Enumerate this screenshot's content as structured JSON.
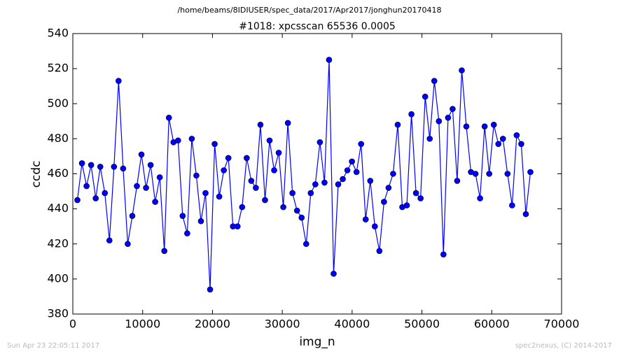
{
  "chart_data": {
    "type": "line",
    "suptitle": "/home/beams/8IDIUSER/spec_data/2017/Apr2017/jonghun20170418",
    "title": "#1018: xpcsscan 65536 0.0005",
    "xlabel": "img_n",
    "ylabel": "ccdc",
    "footer_left": "Sun Apr 23 22:05:11 2017",
    "footer_right": "spec2nexus, (C) 2014-2017",
    "xlim": [
      0,
      70000
    ],
    "xticks": [
      0,
      10000,
      20000,
      30000,
      40000,
      50000,
      60000,
      70000
    ],
    "ylim": [
      380,
      540
    ],
    "yticks": [
      380,
      400,
      420,
      440,
      460,
      480,
      500,
      520,
      540
    ],
    "color": "#0000ff",
    "x": [
      655,
      1311,
      1966,
      2621,
      3277,
      3932,
      4588,
      5243,
      5898,
      6554,
      7209,
      7864,
      8520,
      9175,
      9830,
      10486,
      11141,
      11796,
      12452,
      13107,
      13763,
      14418,
      15073,
      15729,
      16384,
      17039,
      17695,
      18350,
      19005,
      19661,
      20316,
      20972,
      21627,
      22282,
      22938,
      23593,
      24248,
      24904,
      25559,
      26214,
      26870,
      27525,
      28180,
      28836,
      29491,
      30147,
      30802,
      31457,
      32113,
      32768,
      33423,
      34079,
      34734,
      35389,
      36045,
      36700,
      37356,
      38011,
      38666,
      39322,
      39977,
      40632,
      41288,
      41943,
      42598,
      43254,
      43909,
      44564,
      45220,
      45875,
      46531,
      47186,
      47841,
      48497,
      49152,
      49807,
      50463,
      51118,
      51773,
      52429,
      53084,
      53740,
      54395,
      55050,
      55706,
      56361,
      57016,
      57672,
      58327,
      58982,
      59638,
      60293,
      60948,
      61604,
      62259,
      62915,
      63570,
      64225,
      64881,
      65536
    ],
    "values": [
      445,
      466,
      453,
      465,
      446,
      464,
      449,
      422,
      464,
      513,
      463,
      420,
      436,
      453,
      471,
      452,
      465,
      444,
      458,
      416,
      492,
      478,
      479,
      436,
      426,
      480,
      459,
      433,
      449,
      394,
      477,
      447,
      462,
      469,
      430,
      430,
      441,
      469,
      456,
      452,
      488,
      445,
      479,
      462,
      472,
      441,
      489,
      449,
      439,
      435,
      420,
      449,
      454,
      478,
      455,
      525,
      403,
      454,
      457,
      462,
      467,
      461,
      477,
      434,
      456,
      430,
      416,
      444,
      452,
      460,
      488,
      441,
      442,
      494,
      449,
      446,
      504,
      480,
      513,
      490,
      414,
      492,
      497,
      456,
      519,
      487,
      461,
      460,
      446,
      487,
      460,
      488,
      477,
      480,
      460,
      442,
      482,
      477,
      437,
      461
    ]
  }
}
